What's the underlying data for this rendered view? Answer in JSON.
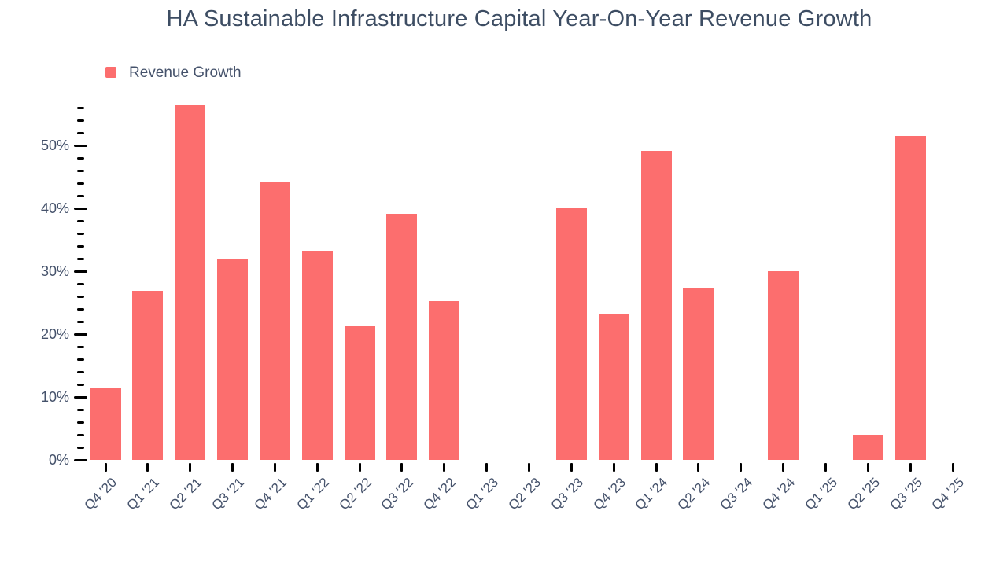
{
  "chart_data": {
    "type": "bar",
    "title": "HA Sustainable Infrastructure Capital Year-On-Year Revenue Growth",
    "xlabel": "",
    "ylabel": "",
    "categories": [
      "Q4 '20",
      "Q1 '21",
      "Q2 '21",
      "Q3 '21",
      "Q4 '21",
      "Q1 '22",
      "Q2 '22",
      "Q3 '22",
      "Q4 '22",
      "Q1 '23",
      "Q2 '23",
      "Q3 '23",
      "Q4 '23",
      "Q1 '24",
      "Q2 '24",
      "Q3 '24",
      "Q4 '24",
      "Q1 '25",
      "Q2 '25",
      "Q3 '25",
      "Q4 '25"
    ],
    "series": [
      {
        "name": "Revenue Growth",
        "values": [
          11.5,
          26.9,
          56.5,
          31.9,
          44.3,
          33.3,
          21.3,
          39.1,
          25.2,
          null,
          null,
          40.0,
          23.1,
          49.1,
          27.4,
          null,
          30.0,
          null,
          4.0,
          51.5,
          null
        ]
      }
    ],
    "y_axis": {
      "unit": "%",
      "tick_values": [
        0,
        10,
        20,
        30,
        40,
        50
      ],
      "tick_labels": [
        "0%",
        "10%",
        "20%",
        "30%",
        "40%",
        "50%"
      ],
      "minor_tick_step": 2,
      "max_tick": 56,
      "ylim": [
        0,
        57.5
      ]
    },
    "legend": {
      "position": "top-left",
      "entries": [
        "Revenue Growth"
      ]
    },
    "grid": false,
    "colors": {
      "bar": "#fc6e6e",
      "text": "#45526b",
      "title": "#3d4d63",
      "tick": "#000000",
      "background": "#ffffff"
    }
  }
}
